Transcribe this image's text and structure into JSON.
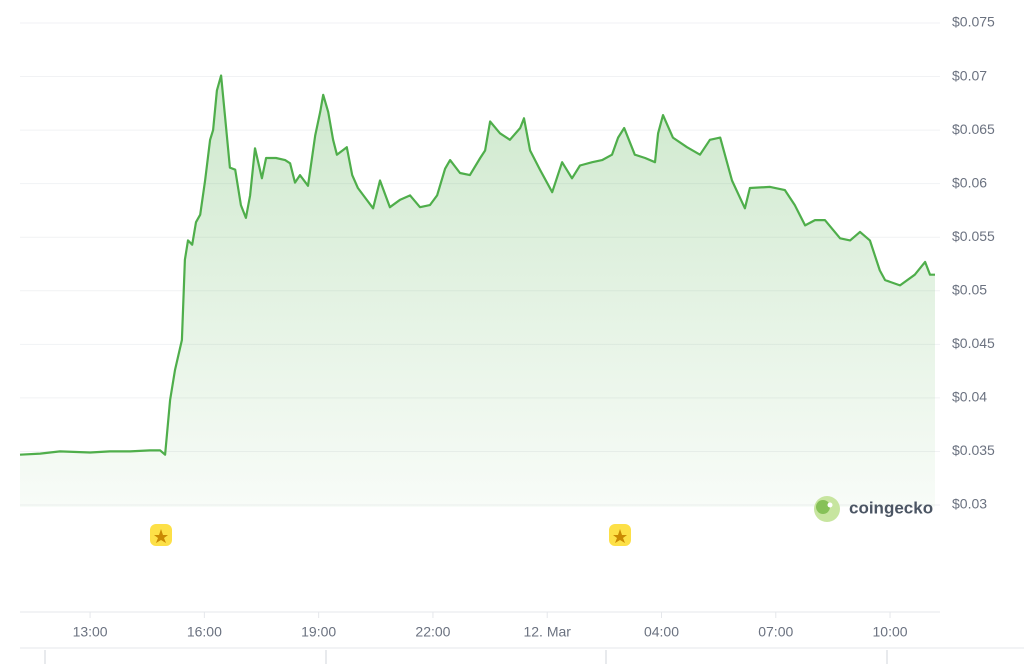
{
  "chart_data": {
    "type": "line",
    "color": "#4fae4b",
    "grid": true,
    "watermark": "coingecko",
    "x": [
      11.16,
      11.69,
      12.21,
      13.0,
      13.52,
      14.05,
      14.57,
      14.84,
      14.97,
      15.1,
      15.23,
      15.41,
      15.49,
      15.57,
      15.68,
      15.78,
      15.89,
      16.02,
      16.15,
      16.23,
      16.33,
      16.44,
      16.54,
      16.67,
      16.81,
      16.96,
      17.09,
      17.2,
      17.33,
      17.51,
      17.62,
      17.88,
      18.12,
      18.25,
      18.38,
      18.51,
      18.72,
      18.91,
      19.04,
      19.12,
      19.25,
      19.38,
      19.48,
      19.74,
      19.88,
      20.03,
      20.22,
      20.43,
      20.61,
      20.87,
      21.14,
      21.4,
      21.66,
      21.92,
      22.11,
      22.32,
      22.45,
      22.71,
      22.97,
      23.24,
      23.37,
      23.5,
      23.76,
      24.02,
      24.29,
      24.39,
      24.55,
      24.81,
      25.13,
      25.39,
      25.65,
      25.86,
      26.18,
      26.44,
      26.7,
      26.86,
      27.02,
      27.3,
      27.57,
      27.83,
      27.91,
      28.04,
      28.3,
      28.67,
      29.01,
      29.27,
      29.54,
      29.85,
      30.19,
      30.32,
      30.85,
      31.24,
      31.5,
      31.77,
      32.03,
      32.29,
      32.69,
      32.95,
      33.21,
      33.47,
      33.73,
      33.87,
      34.26,
      34.65,
      34.92,
      35.05,
      35.18
    ],
    "values": [
      0.0347,
      0.0348,
      0.035,
      0.0349,
      0.035,
      0.035,
      0.0351,
      0.0351,
      0.0347,
      0.0398,
      0.0426,
      0.0454,
      0.0529,
      0.0547,
      0.0543,
      0.0564,
      0.0571,
      0.0603,
      0.0641,
      0.065,
      0.0687,
      0.0701,
      0.0664,
      0.0615,
      0.0613,
      0.058,
      0.0568,
      0.0589,
      0.0633,
      0.0605,
      0.0624,
      0.0624,
      0.0622,
      0.0619,
      0.0601,
      0.0608,
      0.0598,
      0.0645,
      0.0667,
      0.0683,
      0.0667,
      0.0641,
      0.0627,
      0.0634,
      0.0608,
      0.0596,
      0.0587,
      0.0577,
      0.0603,
      0.0578,
      0.0585,
      0.0589,
      0.0578,
      0.058,
      0.0589,
      0.0614,
      0.0622,
      0.061,
      0.0608,
      0.0624,
      0.0631,
      0.0658,
      0.0647,
      0.0641,
      0.0652,
      0.0661,
      0.0631,
      0.0613,
      0.0592,
      0.062,
      0.0605,
      0.0617,
      0.062,
      0.0622,
      0.0627,
      0.0643,
      0.0652,
      0.0627,
      0.0624,
      0.062,
      0.0647,
      0.0664,
      0.0643,
      0.0634,
      0.0627,
      0.0641,
      0.0643,
      0.0603,
      0.0577,
      0.0596,
      0.0597,
      0.0594,
      0.058,
      0.0561,
      0.0566,
      0.0566,
      0.0549,
      0.0547,
      0.0555,
      0.0547,
      0.0519,
      0.051,
      0.0505,
      0.0515,
      0.0527,
      0.0515,
      0.0515
    ],
    "xlim": [
      11.16,
      35.18
    ],
    "xticks": [
      {
        "value": 13,
        "label": "13:00"
      },
      {
        "value": 16,
        "label": "16:00"
      },
      {
        "value": 19,
        "label": "19:00"
      },
      {
        "value": 22,
        "label": "22:00"
      },
      {
        "value": 25,
        "label": "12. Mar"
      },
      {
        "value": 28,
        "label": "04:00"
      },
      {
        "value": 31,
        "label": "07:00"
      },
      {
        "value": 34,
        "label": "10:00"
      }
    ],
    "ylim": [
      0.03,
      0.075
    ],
    "yticks": [
      {
        "value": 0.03,
        "label": "$0.03"
      },
      {
        "value": 0.035,
        "label": "$0.035"
      },
      {
        "value": 0.04,
        "label": "$0.04"
      },
      {
        "value": 0.045,
        "label": "$0.045"
      },
      {
        "value": 0.05,
        "label": "$0.05"
      },
      {
        "value": 0.055,
        "label": "$0.055"
      },
      {
        "value": 0.06,
        "label": "$0.06"
      },
      {
        "value": 0.065,
        "label": "$0.065"
      },
      {
        "value": 0.07,
        "label": "$0.07"
      },
      {
        "value": 0.075,
        "label": "$0.075"
      }
    ]
  }
}
